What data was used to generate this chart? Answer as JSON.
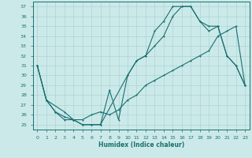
{
  "xlabel": "Humidex (Indice chaleur)",
  "background_color": "#cce9e9",
  "line_color": "#1a7070",
  "grid_color": "#aad4d4",
  "xlim": [
    -0.5,
    23.5
  ],
  "ylim": [
    24.5,
    37.5
  ],
  "yticks": [
    25,
    26,
    27,
    28,
    29,
    30,
    31,
    32,
    33,
    34,
    35,
    36,
    37
  ],
  "xticks": [
    0,
    1,
    2,
    3,
    4,
    5,
    6,
    7,
    8,
    9,
    10,
    11,
    12,
    13,
    14,
    15,
    16,
    17,
    18,
    19,
    20,
    21,
    22,
    23
  ],
  "line1_x": [
    0,
    1,
    2,
    3,
    4,
    5,
    6,
    7,
    8,
    9,
    10,
    11,
    12,
    13,
    14,
    15,
    16,
    17,
    18,
    19,
    20,
    21,
    22,
    23
  ],
  "line1_y": [
    31,
    27.5,
    26.3,
    25.5,
    25.5,
    25.0,
    25.0,
    25.0,
    28.5,
    25.5,
    30.0,
    31.5,
    32.0,
    34.5,
    35.5,
    37.0,
    37.0,
    37.0,
    35.5,
    35.0,
    35.0,
    32.0,
    31.0,
    29.0
  ],
  "line2_x": [
    0,
    1,
    3,
    4,
    5,
    6,
    7,
    10,
    11,
    12,
    13,
    14,
    15,
    16,
    17,
    18,
    19,
    20,
    21,
    22,
    23
  ],
  "line2_y": [
    31,
    27.5,
    26.3,
    25.5,
    25.0,
    25.0,
    25.0,
    30.0,
    31.5,
    32.0,
    33.0,
    34.0,
    36.0,
    37.0,
    37.0,
    35.5,
    34.5,
    35.0,
    32.0,
    31.0,
    29.0
  ],
  "line3_x": [
    0,
    1,
    2,
    3,
    4,
    5,
    6,
    7,
    8,
    9,
    10,
    11,
    12,
    13,
    14,
    15,
    16,
    17,
    18,
    19,
    20,
    21,
    22,
    23
  ],
  "line3_y": [
    31,
    27.5,
    26.3,
    25.8,
    25.5,
    25.5,
    26.0,
    26.3,
    26.0,
    26.5,
    27.5,
    28.0,
    29.0,
    29.5,
    30.0,
    30.5,
    31.0,
    31.5,
    32.0,
    32.5,
    34.0,
    34.5,
    35.0,
    29.0
  ]
}
